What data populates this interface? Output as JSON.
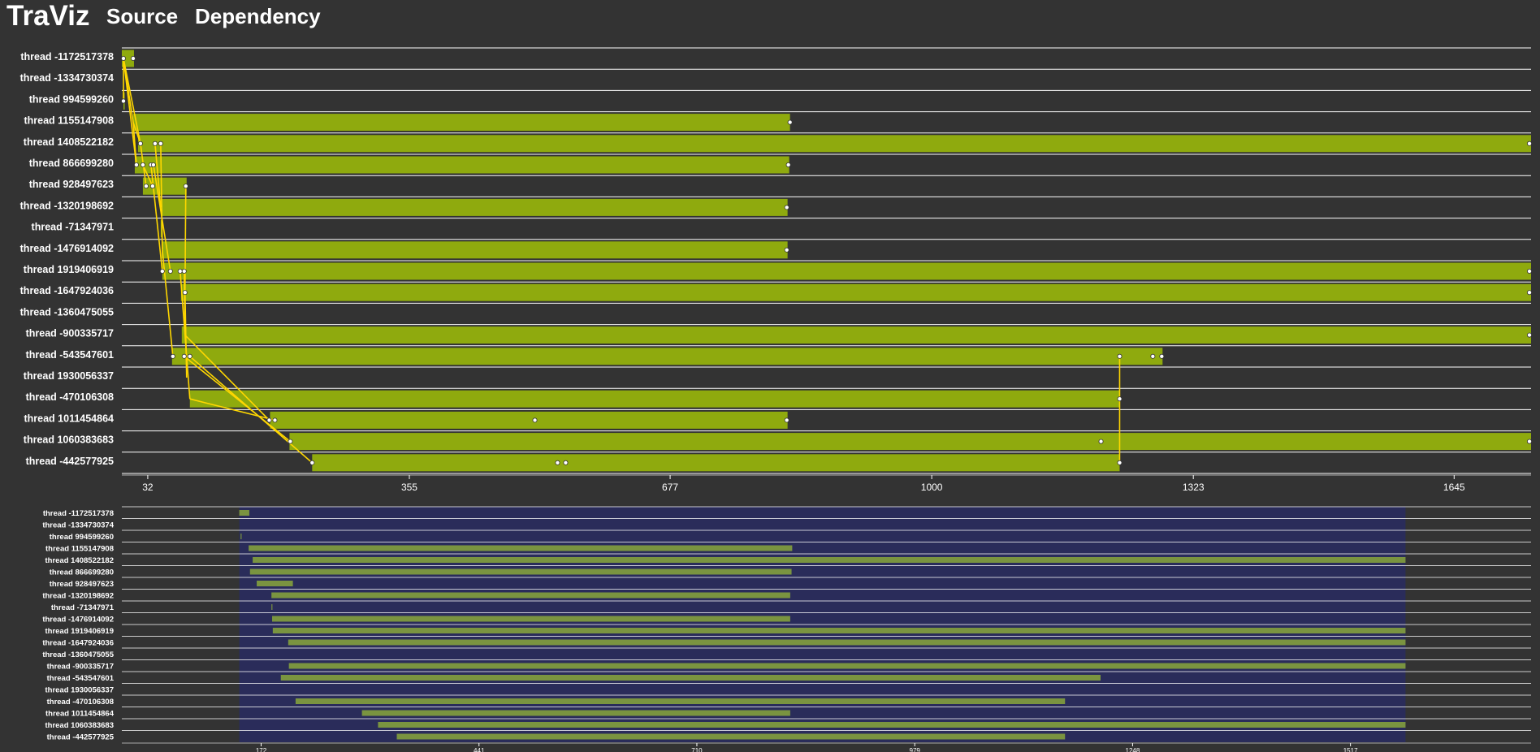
{
  "app": {
    "title": "TraViz"
  },
  "nav": [
    {
      "label": "Source"
    },
    {
      "label": "Dependency"
    }
  ],
  "colors": {
    "background": "#333333",
    "bar": "#8faa0e",
    "mini_bar": "#7a9440",
    "link": "#ffd700",
    "brush": "#2a2c5a"
  },
  "main_axis": {
    "ticks": [
      32,
      355,
      677,
      1000,
      1323,
      1645
    ],
    "domain": [
      0,
      1740
    ]
  },
  "mini_axis": {
    "ticks": [
      172,
      441,
      710,
      979,
      1248,
      1517
    ],
    "domain": [
      0,
      1740
    ],
    "brush": [
      145,
      1585
    ]
  },
  "threads": [
    {
      "label": "thread -1172517378",
      "bar": [
        0,
        15
      ],
      "events": [
        2,
        14
      ]
    },
    {
      "label": "thread -1334730374",
      "bar": null,
      "events": []
    },
    {
      "label": "thread 994599260",
      "bar": [
        2,
        3
      ],
      "events": [
        2
      ]
    },
    {
      "label": "thread 1155147908",
      "bar": [
        14,
        825
      ],
      "events": [
        825
      ]
    },
    {
      "label": "thread 1408522182",
      "bar": [
        20,
        1740
      ],
      "events": [
        23,
        41,
        48,
        1738
      ]
    },
    {
      "label": "thread 866699280",
      "bar": [
        16,
        824
      ],
      "events": [
        18,
        26,
        36,
        39,
        823
      ]
    },
    {
      "label": "thread 928497623",
      "bar": [
        26,
        80
      ],
      "events": [
        30,
        38,
        79
      ]
    },
    {
      "label": "thread -1320198692",
      "bar": [
        48,
        822
      ],
      "events": [
        821
      ]
    },
    {
      "label": "thread -71347971",
      "bar": [
        48,
        49
      ],
      "events": []
    },
    {
      "label": "thread -1476914092",
      "bar": [
        49,
        822
      ],
      "events": [
        821
      ]
    },
    {
      "label": "thread 1919406919",
      "bar": [
        50,
        1740
      ],
      "events": [
        50,
        60,
        72,
        77,
        1738
      ]
    },
    {
      "label": "thread -1647924036",
      "bar": [
        73,
        1740
      ],
      "events": [
        78,
        1738
      ]
    },
    {
      "label": "thread -1360475055",
      "bar": null,
      "events": []
    },
    {
      "label": "thread -900335717",
      "bar": [
        74,
        1740
      ],
      "events": [
        1738
      ]
    },
    {
      "label": "thread -543547601",
      "bar": [
        62,
        1285
      ],
      "events": [
        63,
        77,
        84,
        1232,
        1273,
        1284
      ]
    },
    {
      "label": "thread 1930056337",
      "bar": null,
      "events": []
    },
    {
      "label": "thread -470106308",
      "bar": [
        84,
        1232
      ],
      "events": [
        1232
      ]
    },
    {
      "label": "thread 1011454864",
      "bar": [
        183,
        822
      ],
      "events": [
        182,
        189,
        510,
        821
      ]
    },
    {
      "label": "thread 1060383683",
      "bar": [
        207,
        1740
      ],
      "events": [
        208,
        1209,
        1738
      ]
    },
    {
      "label": "thread -442577925",
      "bar": [
        235,
        1232
      ],
      "events": [
        235,
        538,
        548,
        1232
      ]
    }
  ],
  "links": [
    [
      0,
      2,
      0,
      3
    ],
    [
      0,
      2,
      2,
      2
    ],
    [
      0,
      2,
      3,
      14
    ],
    [
      0,
      2,
      4,
      23
    ],
    [
      0,
      2,
      5,
      18
    ],
    [
      3,
      14,
      4,
      23
    ],
    [
      3,
      14,
      5,
      18
    ],
    [
      4,
      23,
      6,
      30
    ],
    [
      5,
      26,
      6,
      38
    ],
    [
      4,
      41,
      7,
      48
    ],
    [
      4,
      48,
      9,
      50
    ],
    [
      5,
      36,
      10,
      50
    ],
    [
      5,
      39,
      10,
      60
    ],
    [
      6,
      79,
      11,
      78
    ],
    [
      9,
      50,
      14,
      63
    ],
    [
      10,
      77,
      13,
      78
    ],
    [
      11,
      78,
      15,
      80
    ],
    [
      10,
      72,
      16,
      84
    ],
    [
      13,
      78,
      17,
      182
    ],
    [
      16,
      84,
      17,
      189
    ],
    [
      14,
      77,
      18,
      208
    ],
    [
      14,
      84,
      19,
      235
    ],
    [
      14,
      1232,
      16,
      1232
    ],
    [
      16,
      1232,
      19,
      1232
    ]
  ]
}
